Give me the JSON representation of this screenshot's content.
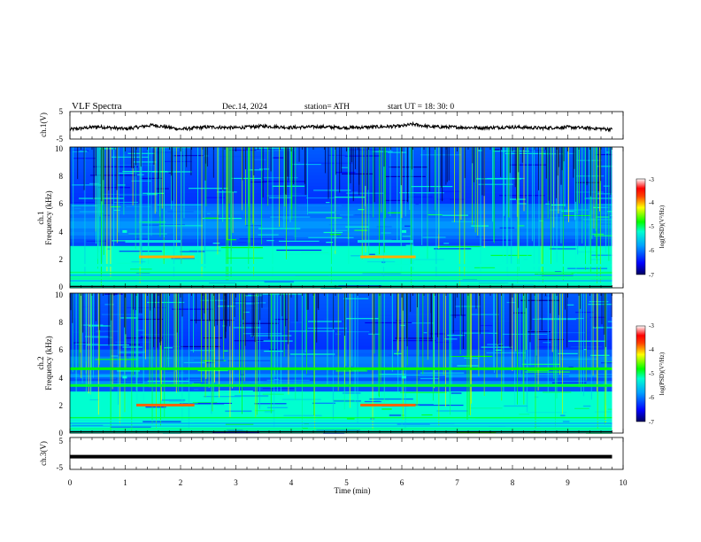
{
  "header": {
    "title": "VLF  Spectra",
    "date": "Dec.14, 2024",
    "station": "station= ATH",
    "start": "start  UT  =   18: 30: 0"
  },
  "chart_data": [
    {
      "type": "line",
      "panel": "ch1",
      "ylabel": "ch.1(V)",
      "ylim": [
        -5,
        5
      ],
      "yticks": [
        "5",
        "-5"
      ],
      "xlim": [
        0,
        10
      ],
      "series": [
        {
          "color": "#000000",
          "x": [
            0,
            0.5,
            1,
            1.5,
            2,
            2.5,
            3,
            3.5,
            4,
            4.5,
            5,
            5.5,
            6,
            6.2,
            6.5,
            7,
            7.5,
            8,
            8.5,
            9,
            9.5,
            9.8
          ],
          "values": [
            -1.5,
            -0.5,
            -1.3,
            0.1,
            -1.4,
            -0.6,
            -0.9,
            -0.3,
            -0.8,
            -0.5,
            -0.9,
            -0.6,
            -0.3,
            0.4,
            -0.5,
            -0.7,
            -0.9,
            -0.6,
            -1.0,
            -0.7,
            -1.1,
            -1.5
          ]
        }
      ]
    },
    {
      "type": "heatmap",
      "panel": "ch1-spectrogram",
      "ylabel_line1": "ch.1",
      "ylabel_line2": "Frequency  (kHz)",
      "ylim": [
        0,
        10
      ],
      "yticks": [
        "0",
        "2",
        "4",
        "6",
        "8",
        "10"
      ],
      "xlim": [
        0,
        9.8
      ],
      "colorscale_label": "log(PSD)(V²/Hz)",
      "colorscale_range": [
        -7,
        -3
      ],
      "colorscale_ticks": [
        "-3",
        "-4",
        "-5",
        "-6",
        "-7"
      ],
      "features": [
        {
          "name": "strong tone",
          "freq_khz": 2.2,
          "time_ranges_min": [
            [
              1.25,
              2.25
            ],
            [
              5.25,
              6.25
            ]
          ],
          "level": -4.0
        },
        {
          "name": "tone",
          "freq_khz": 3.3,
          "time_ranges_min": [
            [
              1.0,
              2.0
            ],
            [
              5.2,
              6.2
            ]
          ],
          "level": -5.4
        },
        {
          "name": "burst",
          "freq_khz": 4.0,
          "time_ranges_min": [
            [
              0.95,
              0.95
            ],
            [
              6.0,
              6.0
            ]
          ],
          "level": -5.2
        },
        {
          "name": "band",
          "freq_khz": 1.6,
          "time_ranges_min": [
            [
              0,
              9.8
            ]
          ],
          "level": -5.2
        },
        {
          "name": "band",
          "freq_khz": 0.7,
          "time_ranges_min": [
            [
              0,
              9.8
            ]
          ],
          "level": -5.0
        }
      ]
    },
    {
      "type": "heatmap",
      "panel": "ch2-spectrogram",
      "ylabel_line1": "ch.2",
      "ylabel_line2": "Frequency  (kHz)",
      "ylim": [
        0,
        10
      ],
      "yticks": [
        "0",
        "2",
        "4",
        "6",
        "8",
        "10"
      ],
      "xlim": [
        0,
        9.8
      ],
      "colorscale_label": "log(PSD)(V²/Hz)",
      "colorscale_range": [
        -7,
        -3
      ],
      "colorscale_ticks": [
        "-3",
        "-4",
        "-5",
        "-6",
        "-7"
      ],
      "features": [
        {
          "name": "strong tone",
          "freq_khz": 2.0,
          "time_ranges_min": [
            [
              1.2,
              2.25
            ],
            [
              5.25,
              6.25
            ]
          ],
          "level": -3.8
        },
        {
          "name": "band",
          "freq_khz": 4.6,
          "time_ranges_min": [
            [
              0,
              9.8
            ]
          ],
          "level": -4.8
        },
        {
          "name": "band",
          "freq_khz": 3.4,
          "time_ranges_min": [
            [
              0,
              9.8
            ]
          ],
          "level": -4.9
        },
        {
          "name": "burst",
          "freq_khz": 4.0,
          "time_ranges_min": [
            [
              0.95,
              0.95
            ],
            [
              6.0,
              6.0
            ]
          ],
          "level": -5.2
        }
      ]
    },
    {
      "type": "line",
      "panel": "ch3",
      "ylabel": "ch.3(V)",
      "ylim": [
        -5,
        5
      ],
      "yticks": [
        "5",
        "-5"
      ],
      "xlim": [
        0,
        10
      ],
      "xlabel": "Time  (min)",
      "xticks": [
        "0",
        "1",
        "2",
        "3",
        "4",
        "5",
        "6",
        "7",
        "8",
        "9",
        "10"
      ],
      "series": [
        {
          "color": "#000000",
          "x": [
            0,
            9.8
          ],
          "values": [
            -1.0,
            -1.0
          ]
        }
      ]
    }
  ]
}
